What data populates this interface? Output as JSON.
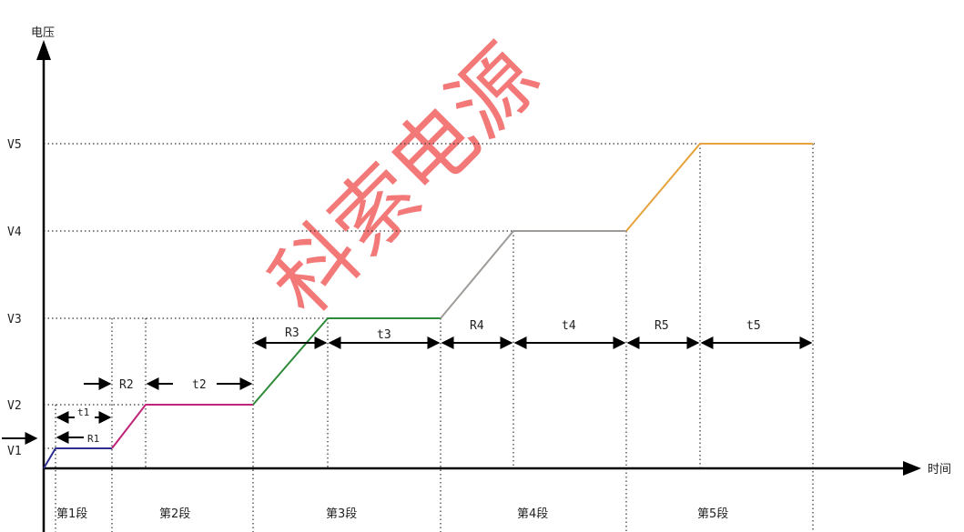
{
  "axes": {
    "y_label": "电压",
    "x_label": "时间"
  },
  "voltage_labels": [
    "V1",
    "V2",
    "V3",
    "V4",
    "V5"
  ],
  "interval_labels": {
    "t1": "t1",
    "R1": "R1",
    "R2": "R2",
    "t2": "t2",
    "R3": "R3",
    "t3": "t3",
    "R4": "R4",
    "t4": "t4",
    "R5": "R5",
    "t5": "t5"
  },
  "segments": [
    "第1段",
    "第2段",
    "第3段",
    "第4段",
    "第5段"
  ],
  "watermark": "科索电源",
  "colors": {
    "ramp1": "#2f2f8f",
    "seg2": "#c0257a",
    "seg3": "#2e8b3a",
    "seg4": "#9e9a97",
    "seg5": "#e6a23c",
    "watermark": "#f26b6b"
  }
}
